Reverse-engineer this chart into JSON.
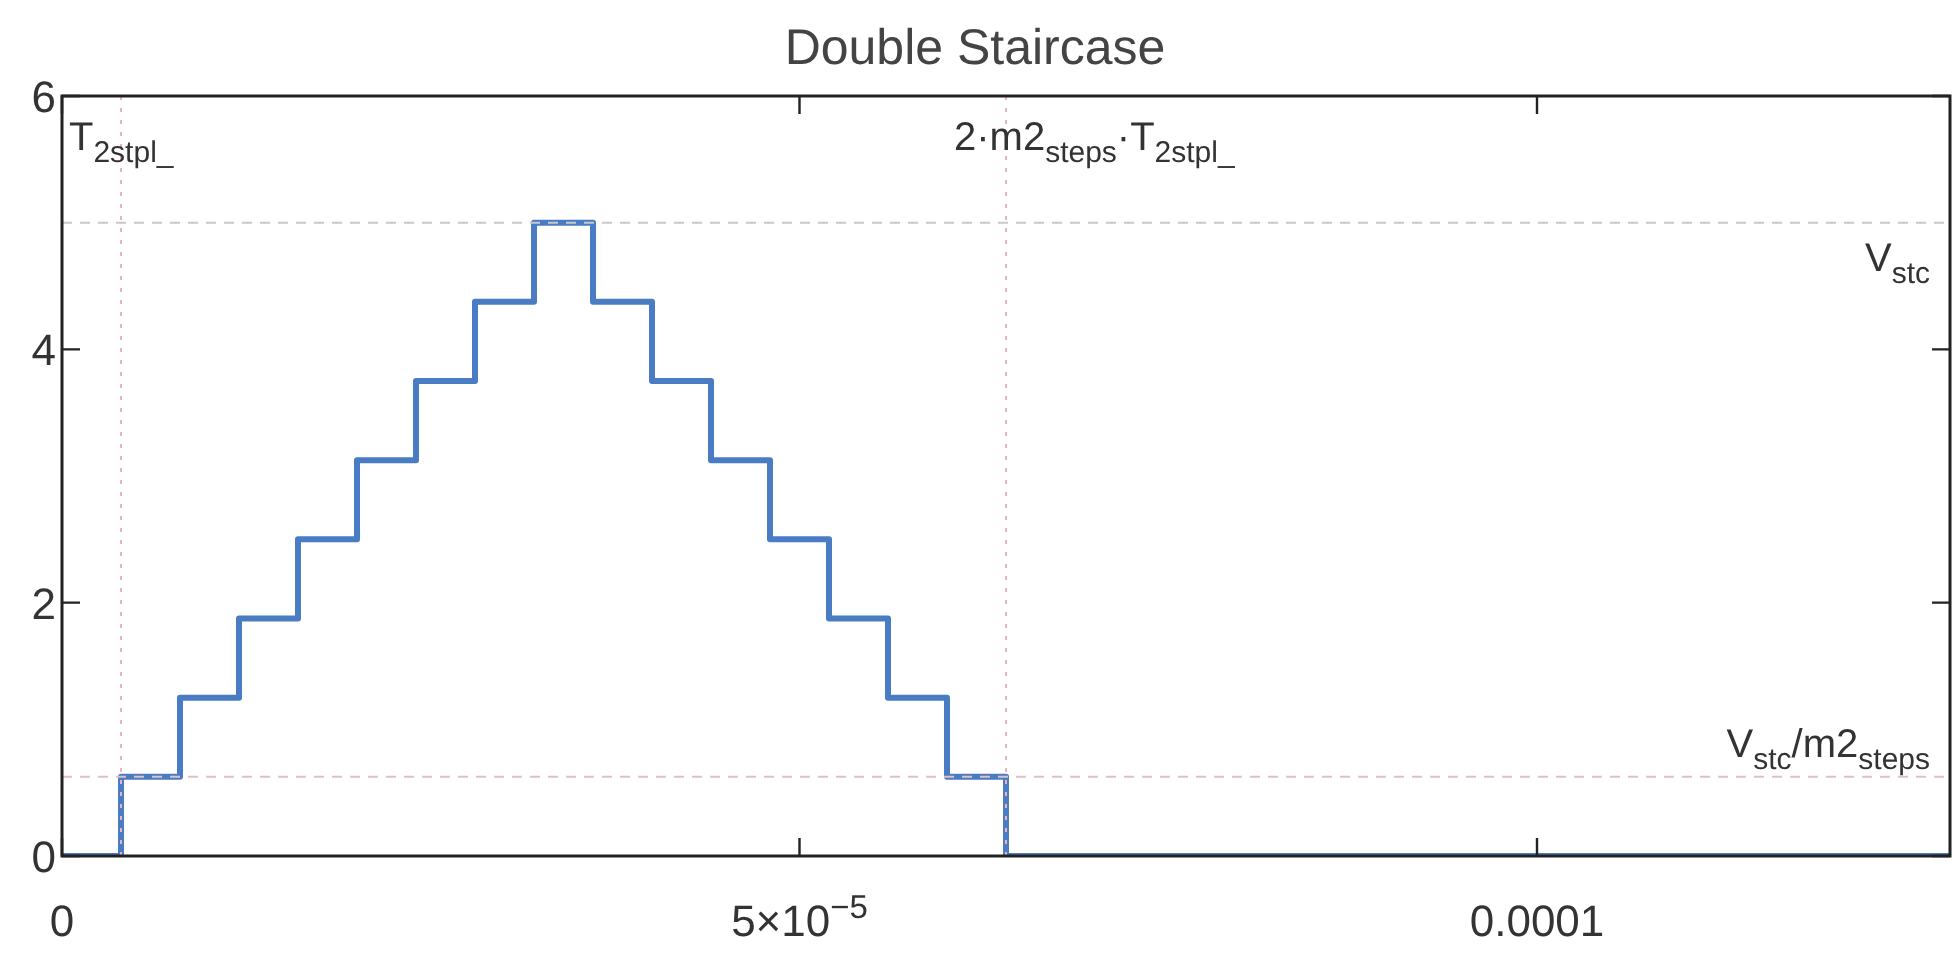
{
  "chart_data": {
    "type": "step",
    "title": "Double Staircase",
    "x": [
      0,
      4e-06,
      8e-06,
      1.2e-05,
      1.6e-05,
      2e-05,
      2.4e-05,
      2.8e-05,
      3.2e-05,
      3.6e-05,
      4e-05,
      4.4e-05,
      4.8e-05,
      5.2e-05,
      5.6e-05,
      6e-05,
      6.4e-05,
      0.000128
    ],
    "series": [
      {
        "color": "#4a7cc4",
        "values": [
          0,
          0.625,
          1.25,
          1.875,
          2.5,
          3.125,
          3.75,
          4.375,
          5,
          4.375,
          3.75,
          3.125,
          2.5,
          1.875,
          1.25,
          0.625,
          0,
          0
        ]
      }
    ],
    "xlim": [
      0,
      0.000128
    ],
    "xticks": [
      0,
      {
        "value": 5e-05,
        "label": "5×10$^{−5}$"
      },
      {
        "value": 0.0001,
        "label": "0.0001"
      }
    ],
    "ylim": [
      0,
      6
    ],
    "yticks": [
      0,
      2,
      4,
      6
    ],
    "ref_lines": [
      {
        "axis": "x",
        "value": 4e-06,
        "label": "T$_{2stpl_}$",
        "color": "#e8b4bc",
        "line_style": "dotted"
      },
      {
        "axis": "x",
        "value": 6.4e-05,
        "label": "2·m2$_{steps}$·T$_{2stpl_}$",
        "color": "#e8b4bc",
        "line_style": "dotted"
      },
      {
        "axis": "y",
        "value": 5,
        "label": "V$_{stc}$",
        "color": "#c8c8c8",
        "line_style": "dashed"
      },
      {
        "axis": "y",
        "value": 0.625,
        "label": "V$_{stc}$/m2$_{steps}$",
        "color": "#e0c0c4",
        "line_style": "dashed"
      }
    ],
    "grid": false,
    "legend": false,
    "marker": "none",
    "line_style": "solid"
  }
}
